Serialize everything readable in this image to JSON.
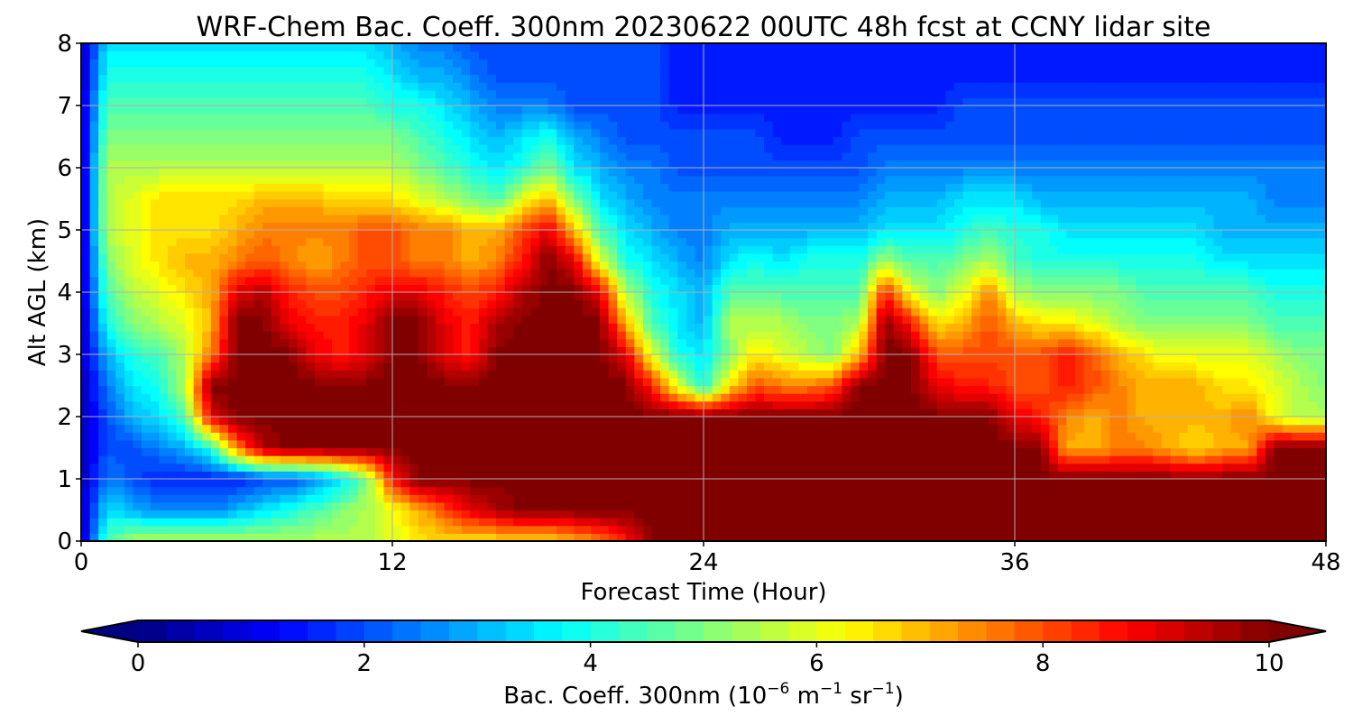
{
  "chart_data": {
    "type": "heatmap",
    "title": "WRF-Chem Bac. Coeff. 300nm  20230622 00UTC 48h fcst at CCNY lidar site",
    "xlabel": "Forecast Time (Hour)",
    "ylabel": "Alt AGL (km)",
    "xlim": [
      0,
      48
    ],
    "ylim": [
      0,
      8
    ],
    "x_ticks": [
      "0",
      "12",
      "24",
      "36",
      "48"
    ],
    "y_ticks": [
      "0",
      "1",
      "2",
      "3",
      "4",
      "5",
      "6",
      "7",
      "8"
    ],
    "grid": true,
    "colormap": "jet",
    "colorbar": {
      "label_main": "Bac. Coeff. 300nm  (10",
      "label_exp1": "−6",
      "label_mid": " m",
      "label_exp2": "−1",
      "label_end": " sr",
      "label_exp3": "−1",
      "label_close": ")",
      "range": [
        0,
        10
      ],
      "extend": "both",
      "ticks": [
        "0",
        "2",
        "4",
        "6",
        "8",
        "10"
      ]
    },
    "x": [
      0,
      1,
      2,
      3,
      4,
      5,
      6,
      7,
      8,
      9,
      10,
      11,
      12,
      13,
      14,
      15,
      16,
      17,
      18,
      19,
      20,
      21,
      22,
      23,
      24,
      25,
      26,
      27,
      28,
      29,
      30,
      31,
      32,
      33,
      34,
      35,
      36,
      37,
      38,
      39,
      40,
      41,
      42,
      43,
      44,
      45,
      46,
      47,
      48
    ],
    "y": [
      0,
      0.5,
      1,
      1.5,
      2,
      2.5,
      3,
      3.5,
      4,
      4.5,
      5,
      5.5,
      6,
      6.5,
      7,
      7.5,
      8
    ],
    "z": [
      [
        0.5,
        4.5,
        5.5,
        5.5,
        5.5,
        5.5,
        5.5,
        5.5,
        5.5,
        5.5,
        5.5,
        5.5,
        6,
        6.5,
        6.5,
        6.5,
        6.5,
        6.5,
        6.5,
        7,
        7.5,
        8.5,
        10,
        10,
        10,
        10,
        10,
        10,
        10,
        10,
        10,
        10,
        10,
        10,
        10,
        10,
        10,
        10,
        10,
        10,
        10,
        10,
        10,
        10,
        10,
        10,
        10,
        10,
        10
      ],
      [
        0.5,
        3.5,
        3,
        2.5,
        2.5,
        2.5,
        3,
        3.5,
        4,
        4.5,
        5,
        5.5,
        6,
        7,
        8,
        9,
        9.5,
        10,
        10,
        10,
        10,
        10,
        10,
        10,
        10,
        10,
        10,
        10,
        10,
        10,
        10,
        10,
        10,
        10,
        10,
        10,
        10,
        10,
        10,
        10,
        10,
        10,
        10,
        10,
        10,
        10,
        10,
        10,
        10
      ],
      [
        0.5,
        2.5,
        2,
        1.5,
        1.5,
        1.5,
        1.5,
        2,
        2,
        2.5,
        3.5,
        5,
        8.5,
        10,
        10,
        10,
        10,
        10,
        10,
        10,
        10,
        10,
        10,
        10,
        10,
        10,
        10,
        10,
        10,
        10,
        10,
        10,
        10,
        10,
        10,
        10,
        10,
        10,
        10,
        10,
        10,
        10,
        10,
        10,
        10,
        10,
        10,
        10,
        10
      ],
      [
        0.5,
        2,
        2,
        2.5,
        3,
        4,
        7.5,
        9.5,
        10,
        10,
        10,
        10,
        10,
        10,
        10,
        10,
        10,
        10,
        10,
        10,
        10,
        10,
        10,
        10,
        10,
        10,
        10,
        10,
        10,
        10,
        10,
        10,
        10,
        10,
        10,
        10,
        10,
        10,
        7,
        7,
        7.5,
        7.5,
        7,
        6.5,
        7,
        7,
        10,
        10,
        10
      ],
      [
        0.5,
        2,
        3,
        3.5,
        4.5,
        9,
        10,
        10,
        10,
        10,
        10,
        10,
        10,
        10,
        10,
        10,
        10,
        10,
        10,
        10,
        10,
        10,
        10,
        10,
        10,
        10,
        10,
        10,
        10,
        10,
        10,
        10,
        10,
        10,
        10,
        10,
        9,
        8.5,
        7.5,
        7,
        7.5,
        7,
        7,
        7,
        7,
        7.5,
        6,
        5.5,
        5.5
      ],
      [
        0.5,
        2.5,
        3.5,
        4,
        5.5,
        10,
        10,
        10,
        10,
        10,
        10,
        10,
        10,
        10,
        10,
        10,
        10,
        10,
        10,
        10,
        10,
        10,
        8.5,
        6,
        4,
        6.5,
        8,
        7.5,
        7.5,
        8,
        10,
        10,
        10,
        9,
        8.5,
        8.5,
        8,
        8,
        8.5,
        8,
        7.5,
        7,
        7,
        7,
        6.5,
        6.5,
        6,
        5.5,
        5
      ],
      [
        0.5,
        3,
        4,
        4.5,
        5.5,
        7.5,
        10,
        10,
        10,
        9,
        8.5,
        9,
        10,
        10,
        9,
        8.5,
        10,
        10,
        10,
        10,
        10,
        9,
        6,
        4,
        3.5,
        5,
        6.5,
        6,
        5.5,
        5,
        7,
        10,
        10,
        8,
        8,
        8,
        8,
        8,
        8.5,
        8,
        7,
        6.5,
        6,
        6,
        6,
        6,
        5.5,
        5,
        5
      ],
      [
        0.5,
        4,
        5,
        5.5,
        6,
        7,
        10,
        10,
        9,
        8.5,
        8.5,
        9,
        10,
        10,
        9,
        8.5,
        9.5,
        10,
        10,
        10,
        10,
        7,
        4.5,
        3.5,
        3,
        5.5,
        5.5,
        5.5,
        5,
        5,
        5.5,
        10,
        8.5,
        6.5,
        7,
        8,
        7,
        6.5,
        6.5,
        6,
        5.5,
        5,
        5,
        5,
        5,
        5,
        4.5,
        4.5,
        4.5
      ],
      [
        0.5,
        4.5,
        5.5,
        6,
        6.5,
        7,
        9,
        9.5,
        8.5,
        8,
        8,
        8.5,
        9,
        9,
        8.5,
        8,
        8.5,
        9.5,
        10,
        10,
        9,
        5.5,
        4,
        3.5,
        3,
        4.5,
        4.5,
        4.5,
        4.5,
        4.5,
        4.5,
        8.5,
        6,
        5,
        6,
        7.5,
        5.5,
        5,
        5,
        5,
        5,
        4.5,
        4.5,
        4.5,
        4.5,
        4.5,
        4,
        4,
        4
      ],
      [
        0.5,
        5,
        6,
        6.5,
        7,
        7,
        7.5,
        8,
        7.5,
        7,
        7.5,
        8,
        8,
        7.5,
        7.5,
        7,
        7.5,
        8.5,
        10,
        9,
        6,
        4,
        3.5,
        3,
        2.5,
        3.5,
        4,
        3.5,
        4,
        4,
        4,
        5.5,
        4.5,
        4.5,
        5,
        5.5,
        4.5,
        4,
        4,
        4,
        4,
        4,
        4,
        4,
        3.5,
        3.5,
        3.5,
        3.5,
        3.5
      ],
      [
        0.5,
        5.5,
        6,
        6.5,
        6.5,
        6.5,
        7,
        7.5,
        7.5,
        7.5,
        7.5,
        8,
        8,
        7.5,
        7.5,
        7,
        7,
        8,
        9,
        7,
        4.5,
        3.5,
        3,
        2.5,
        2.5,
        3,
        3,
        3,
        3,
        3,
        3,
        3.5,
        3.5,
        3.5,
        4,
        4.5,
        4,
        4,
        3.5,
        3.5,
        3.5,
        3.5,
        3.5,
        3.5,
        3,
        3,
        3,
        3,
        3
      ],
      [
        0.5,
        5.5,
        6,
        6.5,
        6.5,
        6.5,
        6.5,
        7,
        7,
        7,
        6.5,
        6.5,
        6.5,
        6,
        5.5,
        5,
        4.5,
        6,
        7,
        5,
        3.5,
        3,
        2.5,
        2.5,
        2.5,
        2.5,
        2.5,
        2.5,
        2.5,
        2.5,
        2.5,
        3,
        3,
        3,
        3.5,
        3.5,
        3.5,
        3,
        3,
        3,
        3,
        3,
        3,
        3,
        3,
        3,
        2.5,
        2.5,
        2.5
      ],
      [
        0.5,
        5.5,
        5.5,
        5.5,
        5.5,
        5.5,
        5.5,
        5.5,
        5.5,
        5.5,
        5.5,
        5.5,
        5.5,
        5,
        4.5,
        4,
        3.5,
        4,
        5,
        3.5,
        3,
        2.5,
        2.5,
        2,
        2,
        2,
        2,
        2,
        2,
        2,
        2,
        2.5,
        2.5,
        2.5,
        2.5,
        2.5,
        2.5,
        2.5,
        2.5,
        2.5,
        2.5,
        2.5,
        2.5,
        2.5,
        2.5,
        2.5,
        2.5,
        2.5,
        2.5
      ],
      [
        0.5,
        5,
        5,
        5,
        5,
        5,
        5,
        5,
        5,
        5,
        5,
        5,
        5,
        4.5,
        4,
        3.5,
        3,
        3.5,
        4,
        3,
        2.5,
        2,
        2,
        2,
        2,
        2,
        2,
        1.5,
        1.5,
        1.5,
        2,
        2,
        2,
        2,
        2,
        2,
        2,
        2,
        2,
        2,
        2,
        2,
        2,
        2,
        2,
        2,
        2,
        2,
        2
      ],
      [
        0.5,
        4.5,
        4.5,
        4.5,
        4.5,
        4.5,
        4.5,
        4.5,
        4.5,
        4.5,
        4.5,
        4.5,
        4,
        4,
        3.5,
        3,
        2.5,
        2.5,
        2.5,
        2,
        2,
        2,
        2,
        1.5,
        1.5,
        1.5,
        1.5,
        1.5,
        1.5,
        1.5,
        1.5,
        1.5,
        1.5,
        1.5,
        2,
        2,
        2,
        2,
        2,
        2,
        2,
        2,
        2,
        2,
        2,
        2,
        2,
        2,
        2
      ],
      [
        0.5,
        4,
        4,
        4,
        4,
        4,
        4,
        4,
        4,
        4,
        4,
        4,
        3.5,
        3,
        3,
        2.5,
        2,
        2,
        2,
        2,
        2,
        2,
        2,
        1.5,
        1.5,
        1.5,
        1.5,
        1.5,
        1.5,
        1.5,
        1.5,
        1.5,
        1.5,
        1.5,
        1.5,
        1.5,
        1.5,
        1.5,
        1.5,
        1.5,
        1.5,
        1.5,
        1.5,
        1.5,
        1.5,
        1.5,
        1.5,
        1.5,
        1.5
      ],
      [
        0.5,
        3.5,
        3.5,
        3.5,
        3.5,
        3.5,
        3.5,
        3.5,
        3.5,
        3.5,
        3.5,
        3.5,
        3,
        2.5,
        2.5,
        2,
        2,
        2,
        2,
        2,
        2,
        2,
        2,
        1.5,
        1.5,
        1.5,
        1.5,
        1.5,
        1.5,
        1.5,
        1.5,
        1.5,
        1.5,
        1.5,
        1.5,
        1.5,
        1.5,
        1.5,
        1.5,
        1.5,
        1.5,
        1.5,
        1.5,
        1.5,
        1.5,
        1.5,
        1.5,
        1.5,
        1.5
      ]
    ]
  }
}
